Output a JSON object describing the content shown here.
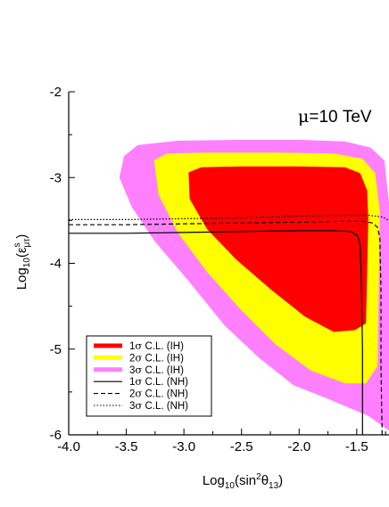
{
  "chart_data": {
    "type": "area",
    "title": "",
    "annotation": {
      "mu": "μ",
      "text": "=10 TeV"
    },
    "xlabel": {
      "base": "Log",
      "sub": "10",
      "open": "(sin",
      "sup": "2",
      "theta": "θ",
      "thetasub": "13",
      "close": ")"
    },
    "ylabel": {
      "base": "Log",
      "sub": "10",
      "open": "(ε",
      "sup": "s",
      "esub": "μτ",
      "close": ")"
    },
    "xlim": [
      -4.0,
      -1.22
    ],
    "ylim": [
      -6.0,
      -2.0
    ],
    "xticks": [
      -4.0,
      -3.5,
      -3.0,
      -2.5,
      -2.0,
      -1.5
    ],
    "xtick_labels": [
      "-4.0",
      "-3.5",
      "-3.0",
      "-2.5",
      "-2.0",
      "-1.5"
    ],
    "yticks": [
      -2,
      -3,
      -4,
      -5,
      -6
    ],
    "ytick_labels": [
      "-2",
      "-3",
      "-4",
      "-5",
      "-6"
    ],
    "grid": false,
    "legend_position": "bottom-left",
    "regions": [
      {
        "name": "3σ C.L. (IH)",
        "legend": {
          "n": "3",
          "sigma": "σ",
          "rest": " C.L. (IH)"
        },
        "color": "#ff80ff",
        "polygon": [
          [
            -3.52,
            -2.75
          ],
          [
            -3.4,
            -2.62
          ],
          [
            -3.05,
            -2.57
          ],
          [
            -2.5,
            -2.56
          ],
          [
            -2.0,
            -2.56
          ],
          [
            -1.6,
            -2.58
          ],
          [
            -1.38,
            -2.65
          ],
          [
            -1.26,
            -2.8
          ],
          [
            -1.22,
            -3.3
          ],
          [
            -1.22,
            -5.95
          ],
          [
            -1.4,
            -5.78
          ],
          [
            -1.75,
            -5.58
          ],
          [
            -2.05,
            -5.42
          ],
          [
            -2.35,
            -5.1
          ],
          [
            -2.65,
            -4.72
          ],
          [
            -2.95,
            -4.22
          ],
          [
            -3.25,
            -3.75
          ],
          [
            -3.45,
            -3.35
          ],
          [
            -3.56,
            -3.0
          ]
        ]
      },
      {
        "name": "2σ C.L. (IH)",
        "legend": {
          "n": "2",
          "sigma": "σ",
          "rest": " C.L. (IH)"
        },
        "color": "#ffff00",
        "polygon": [
          [
            -3.26,
            -2.8
          ],
          [
            -3.15,
            -2.72
          ],
          [
            -2.8,
            -2.71
          ],
          [
            -2.2,
            -2.71
          ],
          [
            -1.7,
            -2.72
          ],
          [
            -1.45,
            -2.78
          ],
          [
            -1.34,
            -2.95
          ],
          [
            -1.3,
            -3.4
          ],
          [
            -1.32,
            -5.2
          ],
          [
            -1.42,
            -5.4
          ],
          [
            -1.6,
            -5.4
          ],
          [
            -1.9,
            -5.25
          ],
          [
            -2.2,
            -4.95
          ],
          [
            -2.5,
            -4.55
          ],
          [
            -2.8,
            -4.1
          ],
          [
            -3.05,
            -3.65
          ],
          [
            -3.22,
            -3.2
          ]
        ]
      },
      {
        "name": "1σ C.L. (IH)",
        "legend": {
          "n": "1",
          "sigma": "σ",
          "rest": " C.L. (IH)"
        },
        "color": "#ff0000",
        "polygon": [
          [
            -2.96,
            -2.94
          ],
          [
            -2.85,
            -2.88
          ],
          [
            -2.5,
            -2.87
          ],
          [
            -2.0,
            -2.87
          ],
          [
            -1.6,
            -2.88
          ],
          [
            -1.47,
            -2.95
          ],
          [
            -1.41,
            -3.15
          ],
          [
            -1.4,
            -3.5
          ],
          [
            -1.42,
            -4.7
          ],
          [
            -1.52,
            -4.78
          ],
          [
            -1.7,
            -4.8
          ],
          [
            -1.95,
            -4.62
          ],
          [
            -2.25,
            -4.3
          ],
          [
            -2.55,
            -3.95
          ],
          [
            -2.8,
            -3.6
          ],
          [
            -2.95,
            -3.25
          ]
        ]
      }
    ],
    "curves": [
      {
        "name": "1σ C.L. (NH)",
        "legend": {
          "n": "1",
          "sigma": "σ",
          "rest": " C.L. (NH)"
        },
        "dash": "solid",
        "points": [
          [
            -4.0,
            -3.65
          ],
          [
            -3.5,
            -3.65
          ],
          [
            -3.0,
            -3.64
          ],
          [
            -2.5,
            -3.63
          ],
          [
            -2.0,
            -3.62
          ],
          [
            -1.7,
            -3.62
          ],
          [
            -1.55,
            -3.63
          ],
          [
            -1.49,
            -3.68
          ],
          [
            -1.47,
            -3.8
          ],
          [
            -1.46,
            -4.2
          ],
          [
            -1.45,
            -5.0
          ],
          [
            -1.45,
            -6.0
          ]
        ]
      },
      {
        "name": "2σ C.L. (NH)",
        "legend": {
          "n": "2",
          "sigma": "σ",
          "rest": " C.L. (NH)"
        },
        "dash": "dashed",
        "points": [
          [
            -4.0,
            -3.55
          ],
          [
            -3.5,
            -3.55
          ],
          [
            -3.0,
            -3.54
          ],
          [
            -2.5,
            -3.53
          ],
          [
            -2.0,
            -3.52
          ],
          [
            -1.6,
            -3.51
          ],
          [
            -1.45,
            -3.51
          ],
          [
            -1.36,
            -3.53
          ],
          [
            -1.32,
            -3.58
          ],
          [
            -1.3,
            -3.7
          ],
          [
            -1.29,
            -4.3
          ],
          [
            -1.29,
            -5.2
          ],
          [
            -1.28,
            -6.0
          ]
        ]
      },
      {
        "name": "3σ C.L. (NH)",
        "legend": {
          "n": "3",
          "sigma": "σ",
          "rest": " C.L. (NH)"
        },
        "dash": "dotted",
        "points": [
          [
            -4.0,
            -3.49
          ],
          [
            -3.5,
            -3.49
          ],
          [
            -3.0,
            -3.48
          ],
          [
            -2.5,
            -3.47
          ],
          [
            -2.0,
            -3.45
          ],
          [
            -1.6,
            -3.44
          ],
          [
            -1.4,
            -3.44
          ],
          [
            -1.28,
            -3.46
          ],
          [
            -1.22,
            -3.5
          ]
        ]
      }
    ]
  }
}
